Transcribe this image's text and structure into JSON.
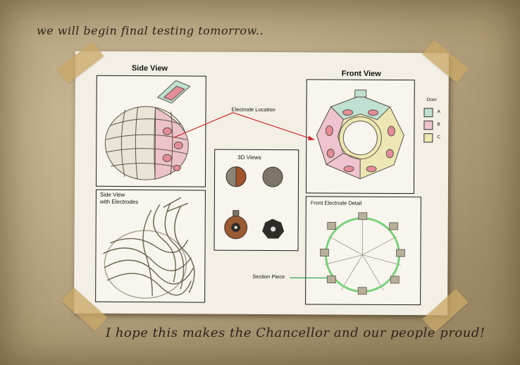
{
  "notes": {
    "top": "we will begin final testing tomorrow..",
    "bottom": "I hope this makes the Chancellor and our people proud!"
  },
  "blueprint": {
    "side_view_title": "Side View",
    "front_view_title": "Front View",
    "electrode_location_label": "Electrode Location",
    "views_3d_title": "3D Views",
    "side_view_electrodes_title_1": "Side View",
    "side_view_electrodes_title_2": "with Electrodes",
    "front_electrode_detail_title": "Front Electrode Detail",
    "section_piece_label": "Section Piece",
    "legend": {
      "title": "Door",
      "items": [
        {
          "label": "A",
          "color": "#bfe0d2"
        },
        {
          "label": "B",
          "color": "#efc3d0"
        },
        {
          "label": "C",
          "color": "#ece7b3"
        }
      ]
    }
  },
  "colors": {
    "pointer_red": "#cc2b2b",
    "pointer_green": "#2fa84f",
    "electrode_pink": "#eaa0a8"
  }
}
